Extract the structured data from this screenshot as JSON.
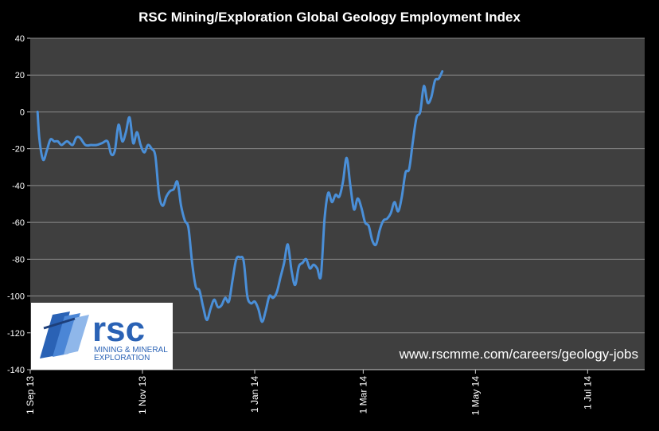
{
  "chart_data": {
    "type": "line",
    "title": "RSC Mining/Exploration Global Geology Employment Index",
    "xlabel": "",
    "ylabel": "",
    "ylim": [
      -140,
      40
    ],
    "yticks": [
      40,
      20,
      0,
      -20,
      -40,
      -60,
      -80,
      -100,
      -120,
      -140
    ],
    "xlim": [
      "2013-09-01",
      "2014-08-01"
    ],
    "xticks": [
      {
        "date": "2013-09-01",
        "label": "1 Sep 13"
      },
      {
        "date": "2013-11-01",
        "label": "1 Nov 13"
      },
      {
        "date": "2014-01-01",
        "label": "1 Jan 14"
      },
      {
        "date": "2014-03-01",
        "label": "1 Mar 14"
      },
      {
        "date": "2014-05-01",
        "label": "1 May 14"
      },
      {
        "date": "2014-07-01",
        "label": "1 Jul 14"
      }
    ],
    "grid": true,
    "line_color": "#4a8fd8",
    "points": [
      [
        "2013-09-05",
        0
      ],
      [
        "2013-09-06",
        -15
      ],
      [
        "2013-09-08",
        -26
      ],
      [
        "2013-09-10",
        -21
      ],
      [
        "2013-09-12",
        -15
      ],
      [
        "2013-09-14",
        -16
      ],
      [
        "2013-09-16",
        -16
      ],
      [
        "2013-09-18",
        -18
      ],
      [
        "2013-09-21",
        -16
      ],
      [
        "2013-09-24",
        -18
      ],
      [
        "2013-09-26",
        -14
      ],
      [
        "2013-09-28",
        -14
      ],
      [
        "2013-10-01",
        -18
      ],
      [
        "2013-10-04",
        -18
      ],
      [
        "2013-10-07",
        -18
      ],
      [
        "2013-10-10",
        -17
      ],
      [
        "2013-10-13",
        -16
      ],
      [
        "2013-10-15",
        -23
      ],
      [
        "2013-10-17",
        -21
      ],
      [
        "2013-10-19",
        -7
      ],
      [
        "2013-10-21",
        -16
      ],
      [
        "2013-10-23",
        -11
      ],
      [
        "2013-10-25",
        -3
      ],
      [
        "2013-10-27",
        -17
      ],
      [
        "2013-10-29",
        -11
      ],
      [
        "2013-10-31",
        -18
      ],
      [
        "2013-11-02",
        -22
      ],
      [
        "2013-11-04",
        -18
      ],
      [
        "2013-11-06",
        -20
      ],
      [
        "2013-11-08",
        -24
      ],
      [
        "2013-11-10",
        -45
      ],
      [
        "2013-11-12",
        -51
      ],
      [
        "2013-11-14",
        -46
      ],
      [
        "2013-11-16",
        -43
      ],
      [
        "2013-11-18",
        -42
      ],
      [
        "2013-11-20",
        -38
      ],
      [
        "2013-11-22",
        -51
      ],
      [
        "2013-11-24",
        -59
      ],
      [
        "2013-11-26",
        -63
      ],
      [
        "2013-11-28",
        -82
      ],
      [
        "2013-11-30",
        -95
      ],
      [
        "2013-12-02",
        -97
      ],
      [
        "2013-12-04",
        -106
      ],
      [
        "2013-12-06",
        -113
      ],
      [
        "2013-12-08",
        -107
      ],
      [
        "2013-12-10",
        -102
      ],
      [
        "2013-12-12",
        -106
      ],
      [
        "2013-12-14",
        -105
      ],
      [
        "2013-12-16",
        -101
      ],
      [
        "2013-12-18",
        -103
      ],
      [
        "2013-12-20",
        -91
      ],
      [
        "2013-12-22",
        -80
      ],
      [
        "2013-12-24",
        -79
      ],
      [
        "2013-12-26",
        -81
      ],
      [
        "2013-12-28",
        -100
      ],
      [
        "2013-12-30",
        -104
      ],
      [
        "2014-01-01",
        -103
      ],
      [
        "2014-01-03",
        -107
      ],
      [
        "2014-01-05",
        -114
      ],
      [
        "2014-01-07",
        -108
      ],
      [
        "2014-01-09",
        -100
      ],
      [
        "2014-01-11",
        -101
      ],
      [
        "2014-01-13",
        -98
      ],
      [
        "2014-01-15",
        -90
      ],
      [
        "2014-01-17",
        -82
      ],
      [
        "2014-01-19",
        -72
      ],
      [
        "2014-01-21",
        -86
      ],
      [
        "2014-01-23",
        -94
      ],
      [
        "2014-01-25",
        -84
      ],
      [
        "2014-01-27",
        -82
      ],
      [
        "2014-01-29",
        -80
      ],
      [
        "2014-01-31",
        -85
      ],
      [
        "2014-02-02",
        -83
      ],
      [
        "2014-02-04",
        -85
      ],
      [
        "2014-02-06",
        -89
      ],
      [
        "2014-02-08",
        -58
      ],
      [
        "2014-02-10",
        -44
      ],
      [
        "2014-02-12",
        -49
      ],
      [
        "2014-02-14",
        -45
      ],
      [
        "2014-02-16",
        -46
      ],
      [
        "2014-02-18",
        -38
      ],
      [
        "2014-02-20",
        -25
      ],
      [
        "2014-02-22",
        -40
      ],
      [
        "2014-02-24",
        -53
      ],
      [
        "2014-02-26",
        -47
      ],
      [
        "2014-02-28",
        -52
      ],
      [
        "2014-03-02",
        -60
      ],
      [
        "2014-03-04",
        -62
      ],
      [
        "2014-03-06",
        -70
      ],
      [
        "2014-03-08",
        -72
      ],
      [
        "2014-03-10",
        -64
      ],
      [
        "2014-03-12",
        -59
      ],
      [
        "2014-03-14",
        -58
      ],
      [
        "2014-03-16",
        -55
      ],
      [
        "2014-03-18",
        -49
      ],
      [
        "2014-03-20",
        -54
      ],
      [
        "2014-03-22",
        -46
      ],
      [
        "2014-03-24",
        -33
      ],
      [
        "2014-03-26",
        -31
      ],
      [
        "2014-03-28",
        -16
      ],
      [
        "2014-03-30",
        -3
      ],
      [
        "2014-04-01",
        0
      ],
      [
        "2014-04-03",
        14
      ],
      [
        "2014-04-05",
        5
      ],
      [
        "2014-04-07",
        8
      ],
      [
        "2014-04-09",
        17
      ],
      [
        "2014-04-11",
        18
      ],
      [
        "2014-04-13",
        22
      ]
    ]
  },
  "watermark": "www.rscmme.com/careers/geology-jobs",
  "logo": {
    "main": "rsc",
    "line1": "MINING & MINERAL",
    "line2": "EXPLORATION",
    "color": "#2a62b5"
  }
}
